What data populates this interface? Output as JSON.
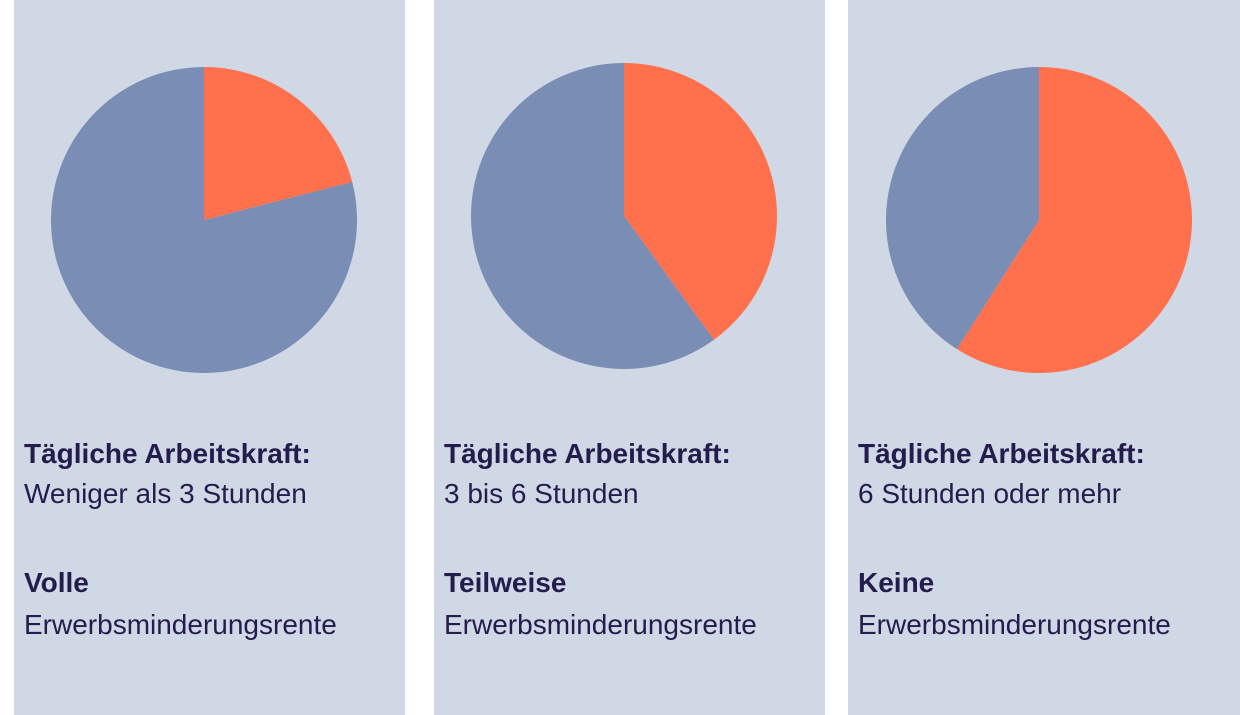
{
  "colors": {
    "background": "#ffffff",
    "panel": "#d0d7e5",
    "highlight_slice": "#ff704d",
    "rest_slice": "#7a8db5",
    "text": "#231c4c"
  },
  "chart_data": [
    {
      "type": "pie",
      "slices": [
        {
          "value": 21,
          "color": "#ff704d"
        },
        {
          "value": 79,
          "color": "#7a8db5"
        }
      ],
      "start_angle_deg": 0,
      "title": "Tägliche Arbeitskraft:",
      "subtitle": "Weniger als 3 Stunden",
      "annotation": {
        "bold": "Volle",
        "text": "Erwerbsminderungsrente"
      }
    },
    {
      "type": "pie",
      "slices": [
        {
          "value": 40,
          "color": "#ff704d"
        },
        {
          "value": 60,
          "color": "#7a8db5"
        }
      ],
      "start_angle_deg": 0,
      "title": "Tägliche Arbeitskraft:",
      "subtitle": "3 bis 6 Stunden",
      "annotation": {
        "bold": "Teilweise",
        "text": "Erwerbsminderungsrente"
      }
    },
    {
      "type": "pie",
      "slices": [
        {
          "value": 59,
          "color": "#ff704d"
        },
        {
          "value": 41,
          "color": "#7a8db5"
        }
      ],
      "start_angle_deg": 0,
      "title": "Tägliche Arbeitskraft:",
      "subtitle": "6 Stunden oder mehr",
      "annotation": {
        "bold": "Keine",
        "text": "Erwerbsminderungsrente"
      }
    }
  ]
}
